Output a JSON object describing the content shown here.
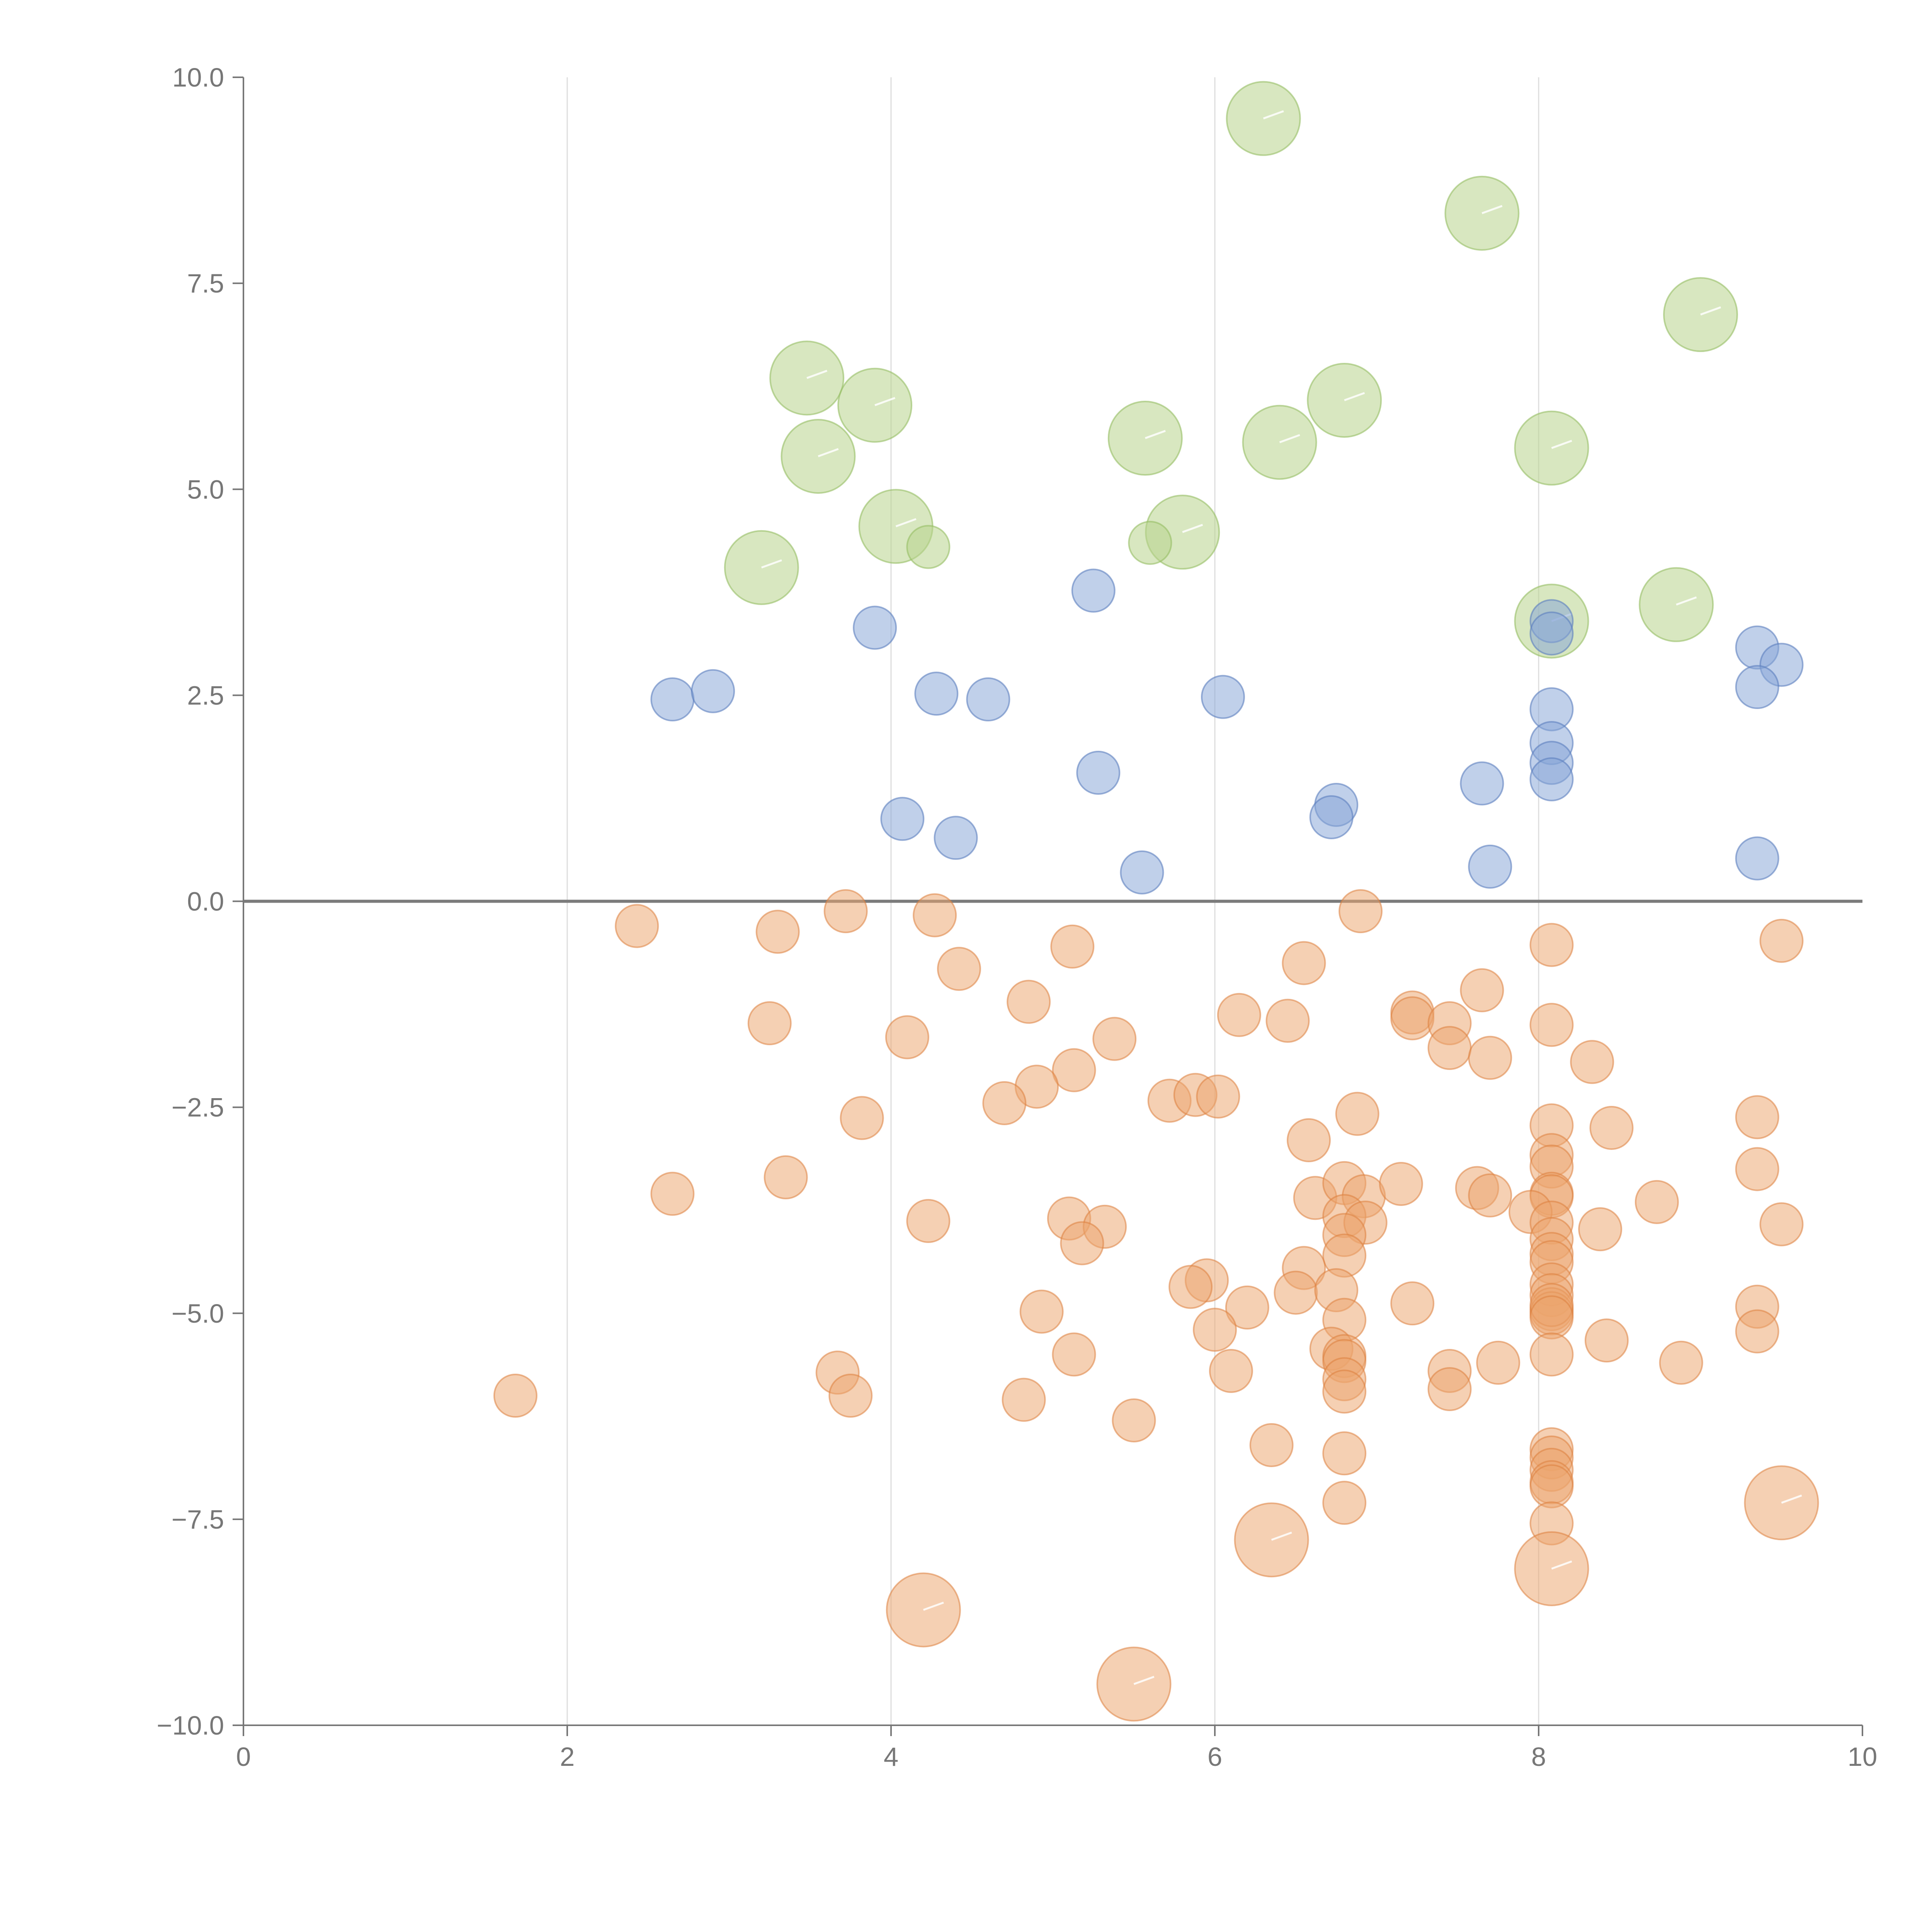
{
  "chart_data": {
    "type": "scatter",
    "title": "",
    "xlabel": "",
    "ylabel": "",
    "xlim": [
      0,
      10
    ],
    "ylim": [
      -10,
      10
    ],
    "x_ticks": [
      "0",
      "2",
      "4",
      "6",
      "8",
      "10"
    ],
    "y_ticks": [
      "10.0",
      "7.5",
      "5.0",
      "2.5",
      "0.0",
      "−2.5",
      "−5.0",
      "−7.5",
      "−10.0"
    ],
    "x_tick_values": [
      0,
      2,
      4,
      6,
      8,
      10
    ],
    "y_tick_values": [
      10,
      7.5,
      5,
      2.5,
      0,
      -2.5,
      -5,
      -7.5,
      -10
    ],
    "grid": "vertical",
    "reference_line_y": 0,
    "colors": {
      "green": "#b8d48c",
      "blue": "#86a4d6",
      "orange": "#eca46e",
      "axis": "#777777",
      "grid": "#dddddd"
    },
    "series": [
      {
        "color": "green",
        "size": "large",
        "points": [
          [
            6.3,
            9.5
          ],
          [
            7.65,
            8.35
          ],
          [
            9.0,
            7.12
          ],
          [
            3.48,
            6.35
          ],
          [
            3.9,
            6.02
          ],
          [
            6.8,
            6.08
          ],
          [
            5.57,
            5.62
          ],
          [
            6.4,
            5.57
          ],
          [
            3.55,
            5.4
          ],
          [
            8.08,
            5.5
          ],
          [
            4.03,
            4.55
          ],
          [
            5.8,
            4.48
          ],
          [
            3.2,
            4.05
          ],
          [
            8.08,
            3.4
          ],
          [
            8.85,
            3.6
          ]
        ]
      },
      {
        "color": "green",
        "size": "small",
        "points": [
          [
            4.23,
            4.3
          ],
          [
            5.6,
            4.35
          ]
        ]
      },
      {
        "color": "blue",
        "size": "small",
        "points": [
          [
            2.65,
            2.45
          ],
          [
            2.9,
            2.55
          ],
          [
            3.9,
            3.32
          ],
          [
            4.28,
            2.52
          ],
          [
            4.6,
            2.45
          ],
          [
            5.25,
            3.77
          ],
          [
            6.05,
            2.48
          ],
          [
            8.08,
            3.4
          ],
          [
            8.08,
            3.25
          ],
          [
            9.35,
            3.08
          ],
          [
            9.5,
            2.87
          ],
          [
            9.35,
            2.6
          ],
          [
            8.08,
            2.33
          ],
          [
            8.08,
            1.92
          ],
          [
            8.08,
            1.68
          ],
          [
            8.08,
            1.48
          ],
          [
            7.65,
            1.43
          ],
          [
            5.28,
            1.56
          ],
          [
            6.75,
            1.17
          ],
          [
            6.72,
            1.02
          ],
          [
            4.07,
            1.0
          ],
          [
            4.4,
            0.77
          ],
          [
            5.55,
            0.35
          ],
          [
            7.7,
            0.42
          ],
          [
            9.35,
            0.52
          ]
        ]
      },
      {
        "color": "orange",
        "size": "small",
        "points": [
          [
            2.43,
            -0.3
          ],
          [
            3.3,
            -0.37
          ],
          [
            3.72,
            -0.12
          ],
          [
            4.27,
            -0.17
          ],
          [
            6.9,
            -0.12
          ],
          [
            9.5,
            -0.48
          ],
          [
            8.08,
            -0.53
          ],
          [
            5.12,
            -0.55
          ],
          [
            6.55,
            -0.75
          ],
          [
            4.42,
            -0.82
          ],
          [
            4.85,
            -1.22
          ],
          [
            3.25,
            -1.48
          ],
          [
            4.1,
            -1.65
          ],
          [
            5.38,
            -1.67
          ],
          [
            6.15,
            -1.38
          ],
          [
            6.45,
            -1.45
          ],
          [
            7.22,
            -1.35
          ],
          [
            7.22,
            -1.42
          ],
          [
            7.45,
            -1.48
          ],
          [
            7.65,
            -1.08
          ],
          [
            8.08,
            -1.5
          ],
          [
            7.45,
            -1.78
          ],
          [
            7.7,
            -1.9
          ],
          [
            8.33,
            -1.95
          ],
          [
            5.13,
            -2.05
          ],
          [
            4.9,
            -2.25
          ],
          [
            4.7,
            -2.45
          ],
          [
            5.72,
            -2.42
          ],
          [
            5.88,
            -2.35
          ],
          [
            6.02,
            -2.37
          ],
          [
            3.82,
            -2.63
          ],
          [
            6.88,
            -2.58
          ],
          [
            8.08,
            -2.72
          ],
          [
            8.45,
            -2.75
          ],
          [
            9.35,
            -2.62
          ],
          [
            6.58,
            -2.9
          ],
          [
            8.08,
            -3.08
          ],
          [
            8.08,
            -3.22
          ],
          [
            9.35,
            -3.25
          ],
          [
            3.35,
            -3.35
          ],
          [
            2.65,
            -3.55
          ],
          [
            6.62,
            -3.6
          ],
          [
            6.8,
            -3.42
          ],
          [
            6.92,
            -3.58
          ],
          [
            7.15,
            -3.43
          ],
          [
            7.62,
            -3.48
          ],
          [
            7.7,
            -3.57
          ],
          [
            8.08,
            -3.55
          ],
          [
            8.08,
            -3.58
          ],
          [
            8.73,
            -3.65
          ],
          [
            6.8,
            -3.82
          ],
          [
            6.93,
            -3.9
          ],
          [
            7.95,
            -3.77
          ],
          [
            8.08,
            -3.9
          ],
          [
            8.08,
            -4.1
          ],
          [
            8.38,
            -3.98
          ],
          [
            9.5,
            -3.92
          ],
          [
            4.23,
            -3.88
          ],
          [
            5.1,
            -3.85
          ],
          [
            5.32,
            -3.95
          ],
          [
            5.18,
            -4.15
          ],
          [
            6.8,
            -4.05
          ],
          [
            6.8,
            -4.3
          ],
          [
            8.08,
            -4.28
          ],
          [
            8.08,
            -4.38
          ],
          [
            8.08,
            -4.65
          ],
          [
            8.08,
            -4.78
          ],
          [
            6.55,
            -4.45
          ],
          [
            5.95,
            -4.6
          ],
          [
            5.85,
            -4.68
          ],
          [
            6.5,
            -4.75
          ],
          [
            6.75,
            -4.72
          ],
          [
            8.08,
            -4.95
          ],
          [
            8.08,
            -5.0
          ],
          [
            8.08,
            -4.9
          ],
          [
            8.08,
            -5.05
          ],
          [
            9.35,
            -4.92
          ],
          [
            7.22,
            -4.88
          ],
          [
            6.2,
            -4.93
          ],
          [
            4.93,
            -4.98
          ],
          [
            6.8,
            -5.08
          ],
          [
            6.0,
            -5.2
          ],
          [
            9.35,
            -5.22
          ],
          [
            8.42,
            -5.33
          ],
          [
            6.72,
            -5.43
          ],
          [
            6.8,
            -5.52
          ],
          [
            6.8,
            -5.58
          ],
          [
            8.08,
            -5.5
          ],
          [
            5.13,
            -5.5
          ],
          [
            7.75,
            -5.6
          ],
          [
            8.88,
            -5.6
          ],
          [
            6.1,
            -5.7
          ],
          [
            7.45,
            -5.7
          ],
          [
            3.67,
            -5.72
          ],
          [
            6.8,
            -5.8
          ],
          [
            6.8,
            -5.95
          ],
          [
            7.45,
            -5.92
          ],
          [
            1.68,
            -6.0
          ],
          [
            3.75,
            -6.0
          ],
          [
            4.82,
            -6.05
          ],
          [
            5.5,
            -6.3
          ],
          [
            6.35,
            -6.6
          ],
          [
            6.8,
            -6.7
          ],
          [
            8.08,
            -6.65
          ],
          [
            8.08,
            -6.75
          ],
          [
            8.08,
            -6.9
          ],
          [
            8.08,
            -7.05
          ],
          [
            8.08,
            -7.1
          ],
          [
            6.8,
            -7.3
          ],
          [
            8.08,
            -7.55
          ]
        ]
      },
      {
        "color": "orange",
        "size": "large",
        "points": [
          [
            9.5,
            -7.3
          ],
          [
            6.35,
            -7.75
          ],
          [
            8.08,
            -8.1
          ],
          [
            4.2,
            -8.6
          ],
          [
            5.5,
            -9.5
          ]
        ]
      }
    ]
  }
}
